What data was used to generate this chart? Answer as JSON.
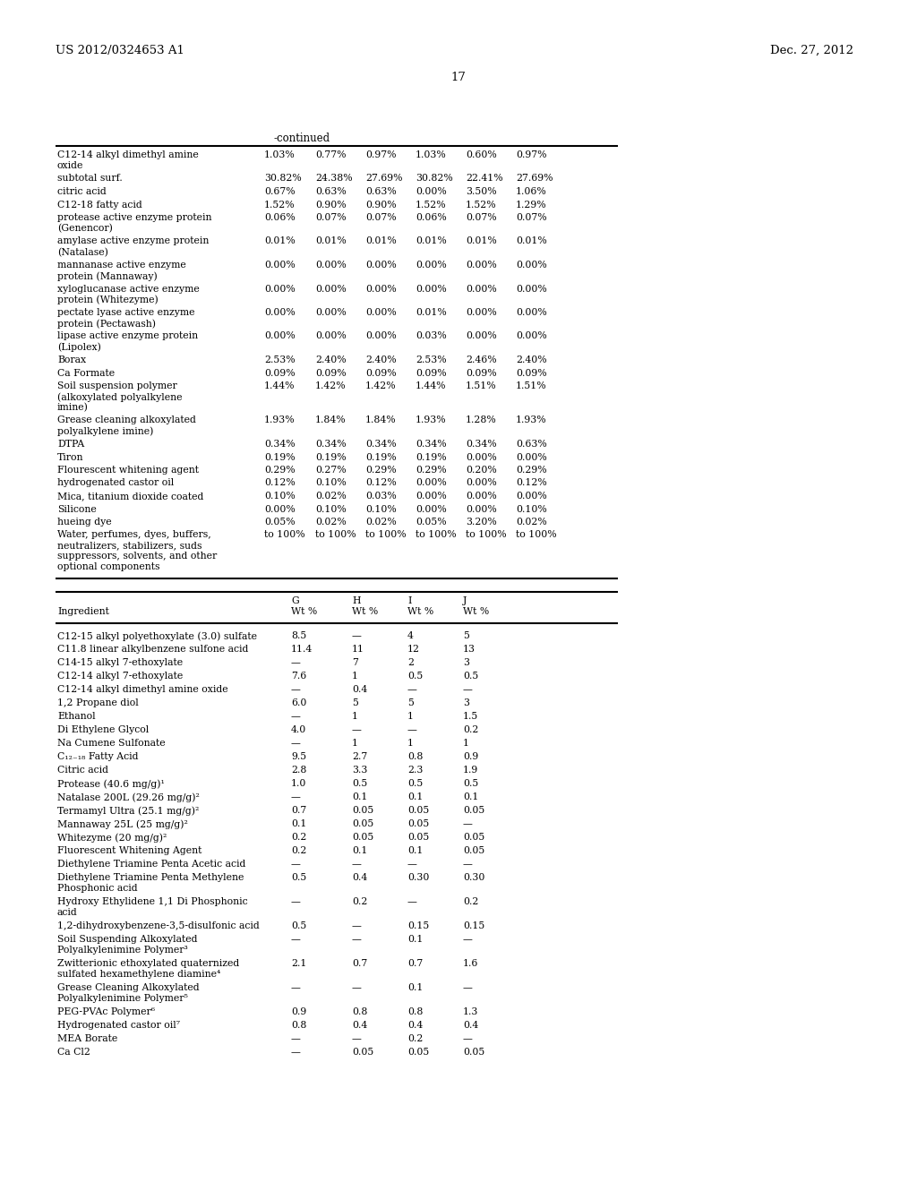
{
  "header_left": "US 2012/0324653 A1",
  "header_right": "Dec. 27, 2012",
  "page_number": "17",
  "continued_label": "-continued",
  "table1_rows": [
    [
      "C12-14 alkyl dimethyl amine\noxide",
      "1.03%",
      "0.77%",
      "0.97%",
      "1.03%",
      "0.60%",
      "0.97%"
    ],
    [
      "subtotal surf.",
      "30.82%",
      "24.38%",
      "27.69%",
      "30.82%",
      "22.41%",
      "27.69%"
    ],
    [
      "citric acid",
      "0.67%",
      "0.63%",
      "0.63%",
      "0.00%",
      "3.50%",
      "1.06%"
    ],
    [
      "C12-18 fatty acid",
      "1.52%",
      "0.90%",
      "0.90%",
      "1.52%",
      "1.52%",
      "1.29%"
    ],
    [
      "protease active enzyme protein\n(Genencor)",
      "0.06%",
      "0.07%",
      "0.07%",
      "0.06%",
      "0.07%",
      "0.07%"
    ],
    [
      "amylase active enzyme protein\n(Natalase)",
      "0.01%",
      "0.01%",
      "0.01%",
      "0.01%",
      "0.01%",
      "0.01%"
    ],
    [
      "mannanase active enzyme\nprotein (Mannaway)",
      "0.00%",
      "0.00%",
      "0.00%",
      "0.00%",
      "0.00%",
      "0.00%"
    ],
    [
      "xyloglucanase active enzyme\nprotein (Whitezyme)",
      "0.00%",
      "0.00%",
      "0.00%",
      "0.00%",
      "0.00%",
      "0.00%"
    ],
    [
      "pectate lyase active enzyme\nprotein (Pectawash)",
      "0.00%",
      "0.00%",
      "0.00%",
      "0.01%",
      "0.00%",
      "0.00%"
    ],
    [
      "lipase active enzyme protein\n(Lipolex)",
      "0.00%",
      "0.00%",
      "0.00%",
      "0.03%",
      "0.00%",
      "0.00%"
    ],
    [
      "Borax",
      "2.53%",
      "2.40%",
      "2.40%",
      "2.53%",
      "2.46%",
      "2.40%"
    ],
    [
      "Ca Formate",
      "0.09%",
      "0.09%",
      "0.09%",
      "0.09%",
      "0.09%",
      "0.09%"
    ],
    [
      "Soil suspension polymer\n(alkoxylated polyalkylene\nimine)",
      "1.44%",
      "1.42%",
      "1.42%",
      "1.44%",
      "1.51%",
      "1.51%"
    ],
    [
      "Grease cleaning alkoxylated\npolyalkylene imine)",
      "1.93%",
      "1.84%",
      "1.84%",
      "1.93%",
      "1.28%",
      "1.93%"
    ],
    [
      "DTPA",
      "0.34%",
      "0.34%",
      "0.34%",
      "0.34%",
      "0.34%",
      "0.63%"
    ],
    [
      "Tiron",
      "0.19%",
      "0.19%",
      "0.19%",
      "0.19%",
      "0.00%",
      "0.00%"
    ],
    [
      "Flourescent whitening agent",
      "0.29%",
      "0.27%",
      "0.29%",
      "0.29%",
      "0.20%",
      "0.29%"
    ],
    [
      "hydrogenated castor oil",
      "0.12%",
      "0.10%",
      "0.12%",
      "0.00%",
      "0.00%",
      "0.12%"
    ],
    [
      "Mica, titanium dioxide coated",
      "0.10%",
      "0.02%",
      "0.03%",
      "0.00%",
      "0.00%",
      "0.00%"
    ],
    [
      "Silicone",
      "0.00%",
      "0.10%",
      "0.10%",
      "0.00%",
      "0.00%",
      "0.10%"
    ],
    [
      "hueing dye",
      "0.05%",
      "0.02%",
      "0.02%",
      "0.05%",
      "3.20%",
      "0.02%"
    ],
    [
      "Water, perfumes, dyes, buffers,\nneutralizers, stabilizers, suds\nsuppressors, solvents, and other\noptional components",
      "to 100%",
      "to 100%",
      "to 100%",
      "to 100%",
      "to 100%",
      "to 100%"
    ]
  ],
  "table2_rows": [
    [
      "C12-15 alkyl polyethoxylate (3.0) sulfate",
      "8.5",
      "—",
      "4",
      "5"
    ],
    [
      "C11.8 linear alkylbenzene sulfone acid",
      "11.4",
      "11",
      "12",
      "13"
    ],
    [
      "C14-15 alkyl 7-ethoxylate",
      "—",
      "7",
      "2",
      "3"
    ],
    [
      "C12-14 alkyl 7-ethoxylate",
      "7.6",
      "1",
      "0.5",
      "0.5"
    ],
    [
      "C12-14 alkyl dimethyl amine oxide",
      "—",
      "0.4",
      "—",
      "—"
    ],
    [
      "1,2 Propane diol",
      "6.0",
      "5",
      "5",
      "3"
    ],
    [
      "Ethanol",
      "—",
      "1",
      "1",
      "1.5"
    ],
    [
      "Di Ethylene Glycol",
      "4.0",
      "—",
      "—",
      "0.2"
    ],
    [
      "Na Cumene Sulfonate",
      "—",
      "1",
      "1",
      "1"
    ],
    [
      "C₁₂₋₁₈ Fatty Acid",
      "9.5",
      "2.7",
      "0.8",
      "0.9"
    ],
    [
      "Citric acid",
      "2.8",
      "3.3",
      "2.3",
      "1.9"
    ],
    [
      "Protease (40.6 mg/g)¹",
      "1.0",
      "0.5",
      "0.5",
      "0.5"
    ],
    [
      "Natalase 200L (29.26 mg/g)²",
      "—",
      "0.1",
      "0.1",
      "0.1"
    ],
    [
      "Termamyl Ultra (25.1 mg/g)²",
      "0.7",
      "0.05",
      "0.05",
      "0.05"
    ],
    [
      "Mannaway 25L (25 mg/g)²",
      "0.1",
      "0.05",
      "0.05",
      "—"
    ],
    [
      "Whitezyme (20 mg/g)²",
      "0.2",
      "0.05",
      "0.05",
      "0.05"
    ],
    [
      "Fluorescent Whitening Agent",
      "0.2",
      "0.1",
      "0.1",
      "0.05"
    ],
    [
      "Diethylene Triamine Penta Acetic acid",
      "—",
      "—",
      "—",
      "—"
    ],
    [
      "Diethylene Triamine Penta Methylene\nPhosphonic acid",
      "0.5",
      "0.4",
      "0.30",
      "0.30"
    ],
    [
      "Hydroxy Ethylidene 1,1 Di Phosphonic\nacid",
      "—",
      "0.2",
      "—",
      "0.2"
    ],
    [
      "1,2-dihydroxybenzene-3,5-disulfonic acid",
      "0.5",
      "—",
      "0.15",
      "0.15"
    ],
    [
      "Soil Suspending Alkoxylated\nPolyalkylenimine Polymer³",
      "—",
      "—",
      "0.1",
      "—"
    ],
    [
      "Zwitterionic ethoxylated quaternized\nsulfated hexamethylene diamine⁴",
      "2.1",
      "0.7",
      "0.7",
      "1.6"
    ],
    [
      "Grease Cleaning Alkoxylated\nPolyalkylenimine Polymer⁵",
      "—",
      "—",
      "0.1",
      "—"
    ],
    [
      "PEG-PVAc Polymer⁶",
      "0.9",
      "0.8",
      "0.8",
      "1.3"
    ],
    [
      "Hydrogenated castor oil⁷",
      "0.8",
      "0.4",
      "0.4",
      "0.4"
    ],
    [
      "MEA Borate",
      "—",
      "—",
      "0.2",
      "—"
    ],
    [
      "Ca Cl2",
      "—",
      "0.05",
      "0.05",
      "0.05"
    ]
  ]
}
